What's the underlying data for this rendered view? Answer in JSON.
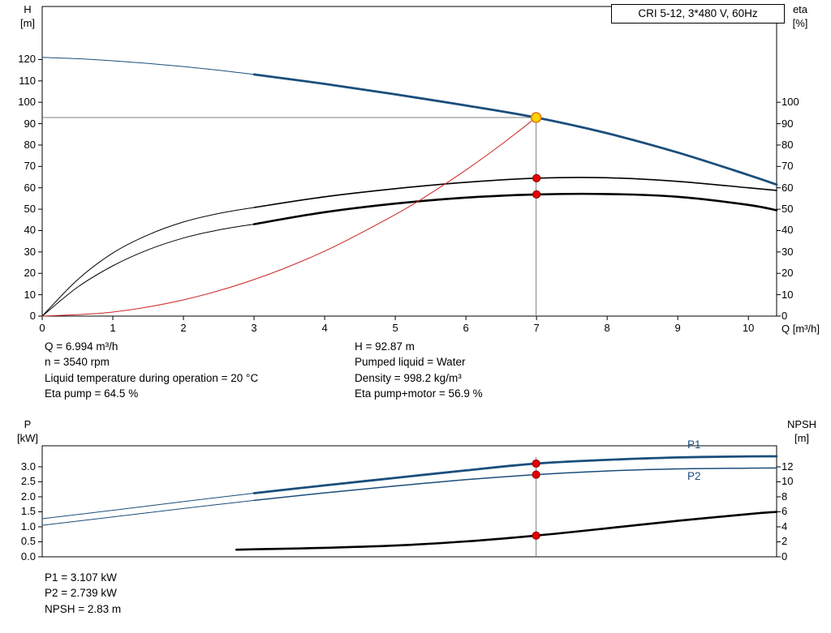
{
  "colors": {
    "curve_blue": "#1a4e7c",
    "curve_black": "#000000",
    "curve_red": "#cc2222",
    "marker_red_fill": "#e60000",
    "marker_red_stroke": "#8b0000",
    "marker_yellow_fill": "#ffd400",
    "marker_yellow_stroke": "#e07818",
    "guide_gray": "#828282",
    "label_blue": "#1a4e7c"
  },
  "title_box": {
    "text": "CRI 5-12, 3*480 V, 60Hz"
  },
  "axes": {
    "top": {
      "left_title": [
        "H",
        "[m]"
      ],
      "right_title": [
        "eta",
        "[%]"
      ],
      "x_title": "Q [m³/h]"
    },
    "bottom": {
      "left_title": [
        "P",
        "[kW]"
      ],
      "right_title": [
        "NPSH",
        "[m]"
      ]
    }
  },
  "curve_labels": {
    "p1": "P1",
    "p2": "P2"
  },
  "results_top": {
    "left": [
      "Q = 6.994 m³/h",
      "n = 3540 rpm",
      "Liquid temperature during operation = 20 °C",
      "Eta pump = 64.5 %"
    ],
    "right": [
      "H = 92.87 m",
      "Pumped liquid = Water",
      "Density = 998.2 kg/m³",
      "Eta pump+motor = 56.9 %"
    ]
  },
  "results_bottom": [
    "P1 = 3.107 kW",
    "P2 = 2.739 kW",
    "NPSH = 2.83 m"
  ],
  "chart_data": [
    {
      "id": "head-eta-chart",
      "type": "line",
      "title": "CRI 5-12, 3*480 V, 60Hz",
      "xlabel": "Q [m³/h]",
      "ylabel_left": "H [m]",
      "ylabel_right": "eta [%]",
      "x_range": [
        0,
        10.4
      ],
      "x_ticks": [
        0,
        1,
        2,
        3,
        4,
        5,
        6,
        7,
        8,
        9,
        10
      ],
      "y_left_ticks": [
        0,
        10,
        20,
        30,
        40,
        50,
        60,
        70,
        80,
        90,
        100,
        110,
        120
      ],
      "y_right_ticks": [
        0,
        10,
        20,
        30,
        40,
        50,
        60,
        70,
        80,
        90,
        100
      ],
      "duty_guides": {
        "q": 6.994,
        "h": 92.87
      },
      "series": [
        {
          "name": "QH curve extension",
          "axis": "left",
          "style": "blue-thin",
          "pts": [
            [
              0,
              121
            ],
            [
              0.5,
              120.4
            ],
            [
              1,
              119.4
            ],
            [
              1.5,
              118.2
            ],
            [
              2,
              116.7
            ],
            [
              2.5,
              115.0
            ],
            [
              3,
              113
            ]
          ]
        },
        {
          "name": "QH curve",
          "axis": "left",
          "style": "blue-thick",
          "pts": [
            [
              3,
              113
            ],
            [
              4,
              108.6
            ],
            [
              5,
              103.7
            ],
            [
              6,
              98.5
            ],
            [
              6.994,
              92.87
            ],
            [
              8,
              85.5
            ],
            [
              9,
              76.5
            ],
            [
              10,
              66
            ],
            [
              10.4,
              61.5
            ]
          ]
        },
        {
          "name": "Eta pump extension",
          "axis": "right",
          "style": "black-thin",
          "pts": [
            [
              0,
              0
            ],
            [
              0.5,
              17
            ],
            [
              1,
              29.5
            ],
            [
              1.5,
              38
            ],
            [
              2,
              44
            ],
            [
              2.5,
              48
            ],
            [
              3,
              50.8
            ]
          ]
        },
        {
          "name": "Eta pump",
          "axis": "right",
          "style": "black-med",
          "pts": [
            [
              3,
              50.8
            ],
            [
              4,
              55.8
            ],
            [
              5,
              59.6
            ],
            [
              6,
              62.6
            ],
            [
              7,
              64.5
            ],
            [
              8,
              64.7
            ],
            [
              9,
              63
            ],
            [
              10,
              60
            ],
            [
              10.4,
              58.8
            ]
          ]
        },
        {
          "name": "Eta pump+motor extension",
          "axis": "right",
          "style": "black-thin",
          "pts": [
            [
              0,
              0
            ],
            [
              0.5,
              13.5
            ],
            [
              1,
              23.5
            ],
            [
              1.5,
              31
            ],
            [
              2,
              36.5
            ],
            [
              2.5,
              40.3
            ],
            [
              3,
              43
            ]
          ]
        },
        {
          "name": "Eta pump+motor",
          "axis": "right",
          "style": "black-thick",
          "pts": [
            [
              3,
              43
            ],
            [
              4,
              48.6
            ],
            [
              5,
              52.6
            ],
            [
              6,
              55.4
            ],
            [
              7,
              56.9
            ],
            [
              8,
              57.1
            ],
            [
              9,
              55.8
            ],
            [
              10,
              52
            ],
            [
              10.4,
              49.5
            ]
          ]
        },
        {
          "name": "System curve",
          "axis": "left",
          "style": "red-thin",
          "pts": [
            [
              0,
              0
            ],
            [
              1,
              1.9
            ],
            [
              2,
              7.6
            ],
            [
              3,
              17.1
            ],
            [
              4,
              30.4
            ],
            [
              5,
              47.5
            ],
            [
              5.5,
              57.4
            ],
            [
              6,
              68.3
            ],
            [
              6.5,
              80.2
            ],
            [
              6.994,
              92.87
            ]
          ]
        }
      ],
      "dots": [
        {
          "q": 6.994,
          "v": 92.87,
          "axis": "left",
          "type": "duty"
        },
        {
          "q": 7,
          "v": 64.5,
          "axis": "right",
          "type": "red"
        },
        {
          "q": 7,
          "v": 56.9,
          "axis": "right",
          "type": "red"
        }
      ]
    },
    {
      "id": "power-npsh-chart",
      "type": "line",
      "ylabel_left": "P [kW]",
      "ylabel_right": "NPSH [m]",
      "x_range": [
        0,
        10.4
      ],
      "x_ticks": [],
      "y_left_ticks": [
        0,
        0.5,
        1,
        1.5,
        2,
        2.5,
        3
      ],
      "y_left_decimals": 1,
      "y_right_ticks": [
        0,
        2,
        4,
        6,
        8,
        10,
        12
      ],
      "duty_guides": {
        "q": 6.994
      },
      "series": [
        {
          "name": "P1 extension",
          "axis": "left",
          "style": "blue-thin",
          "pts": [
            [
              0,
              1.27
            ],
            [
              1,
              1.55
            ],
            [
              2,
              1.84
            ],
            [
              3,
              2.12
            ]
          ]
        },
        {
          "name": "P1",
          "axis": "left",
          "style": "blue-thick",
          "pts": [
            [
              3,
              2.12
            ],
            [
              4,
              2.38
            ],
            [
              5,
              2.63
            ],
            [
              6,
              2.88
            ],
            [
              6.994,
              3.107
            ],
            [
              8,
              3.23
            ],
            [
              9,
              3.31
            ],
            [
              10,
              3.345
            ],
            [
              10.4,
              3.35
            ]
          ]
        },
        {
          "name": "P2 extension",
          "axis": "left",
          "style": "blue-thin",
          "pts": [
            [
              0,
              1.05
            ],
            [
              1,
              1.33
            ],
            [
              2,
              1.61
            ],
            [
              3,
              1.88
            ]
          ]
        },
        {
          "name": "P2",
          "axis": "left",
          "style": "blue-med",
          "pts": [
            [
              3,
              1.88
            ],
            [
              4,
              2.13
            ],
            [
              5,
              2.36
            ],
            [
              6,
              2.57
            ],
            [
              6.994,
              2.739
            ],
            [
              8,
              2.86
            ],
            [
              9,
              2.93
            ],
            [
              10,
              2.955
            ],
            [
              10.4,
              2.96
            ]
          ]
        },
        {
          "name": "NPSH",
          "axis": "right",
          "style": "black-thick",
          "pts": [
            [
              2.75,
              0.95
            ],
            [
              3,
              1.0
            ],
            [
              4,
              1.2
            ],
            [
              5,
              1.5
            ],
            [
              6,
              2.05
            ],
            [
              6.994,
              2.83
            ],
            [
              8,
              3.8
            ],
            [
              9,
              4.8
            ],
            [
              10,
              5.7
            ],
            [
              10.4,
              6.0
            ]
          ]
        }
      ],
      "dots": [
        {
          "q": 6.994,
          "v": 3.107,
          "axis": "left",
          "type": "red"
        },
        {
          "q": 6.994,
          "v": 2.739,
          "axis": "left",
          "type": "red"
        },
        {
          "q": 6.994,
          "v": 2.83,
          "axis": "right",
          "type": "red"
        }
      ]
    }
  ]
}
